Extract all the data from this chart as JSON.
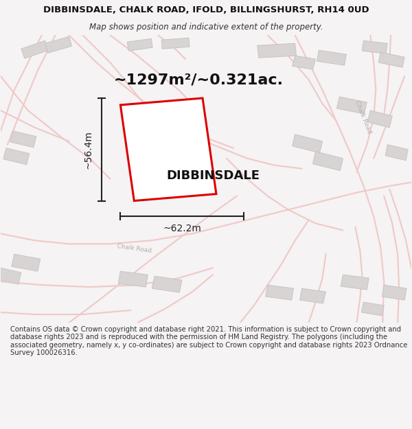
{
  "title_line1": "DIBBINSDALE, CHALK ROAD, IFOLD, BILLINGSHURST, RH14 0UD",
  "title_line2": "Map shows position and indicative extent of the property.",
  "area_text": "~1297m²/~0.321ac.",
  "property_label": "DIBBINSDALE",
  "dim_width": "~62.2m",
  "dim_height": "~56.4m",
  "footer_text": "Contains OS data © Crown copyright and database right 2021. This information is subject to Crown copyright and database rights 2023 and is reproduced with the permission of HM Land Registry. The polygons (including the associated geometry, namely x, y co-ordinates) are subject to Crown copyright and database rights 2023 Ordnance Survey 100026316.",
  "map_bg": "#faf9f9",
  "road_color": "#f0c8c8",
  "road_lw": 1.5,
  "building_color": "#d8d4d4",
  "building_edge": "#c8c4c4",
  "plot_outline_color": "#dd0000",
  "plot_fill_color": "#ffffff",
  "dim_line_color": "#222222",
  "chalk_road_label1": "Chalk Road",
  "chalk_road_label2": "Chalk Road",
  "road_label_color": "#b8aeb0",
  "footer_bg": "#ffffff",
  "title_bg": "#f5f3f3"
}
